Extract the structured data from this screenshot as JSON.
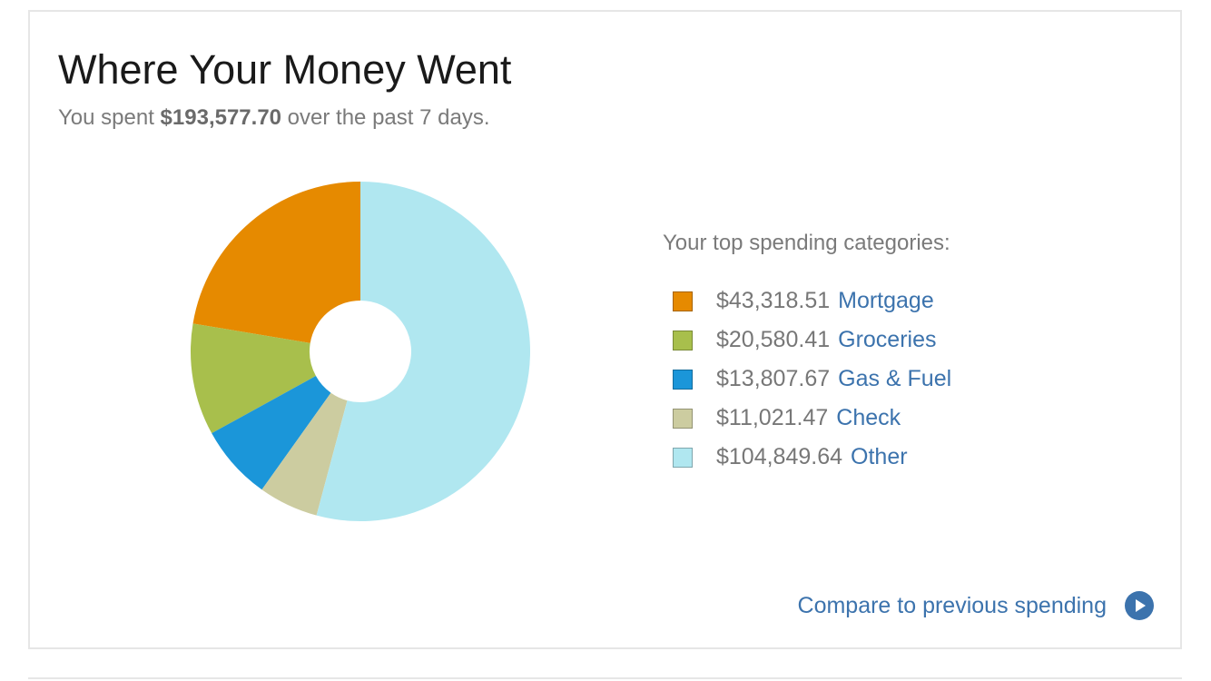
{
  "header": {
    "title": "Where Your Money Went",
    "subtitle_prefix": "You spent ",
    "total": "$193,577.70",
    "subtitle_suffix": " over the past 7 days."
  },
  "legend": {
    "heading": "Your top spending categories:",
    "items": [
      {
        "amount": "$43,318.51",
        "label": "Mortgage",
        "color": "#e68a00"
      },
      {
        "amount": "$20,580.41",
        "label": "Groceries",
        "color": "#a8bf4c"
      },
      {
        "amount": "$13,807.67",
        "label": "Gas & Fuel",
        "color": "#1b96d9"
      },
      {
        "amount": "$11,021.47",
        "label": "Check",
        "color": "#cccca0"
      },
      {
        "amount": "$104,849.64",
        "label": "Other",
        "color": "#b0e7f0"
      }
    ]
  },
  "footer": {
    "compare_label": "Compare to previous spending",
    "compare_icon": "play-circle-icon"
  },
  "chart_data": {
    "type": "pie",
    "categories": [
      "Mortgage",
      "Groceries",
      "Gas & Fuel",
      "Check",
      "Other"
    ],
    "values": [
      43318.51,
      20580.41,
      13807.67,
      11021.47,
      104849.64
    ],
    "colors": [
      "#e68a00",
      "#a8bf4c",
      "#1b96d9",
      "#cccca0",
      "#b0e7f0"
    ],
    "donut": true,
    "legend": "right"
  }
}
